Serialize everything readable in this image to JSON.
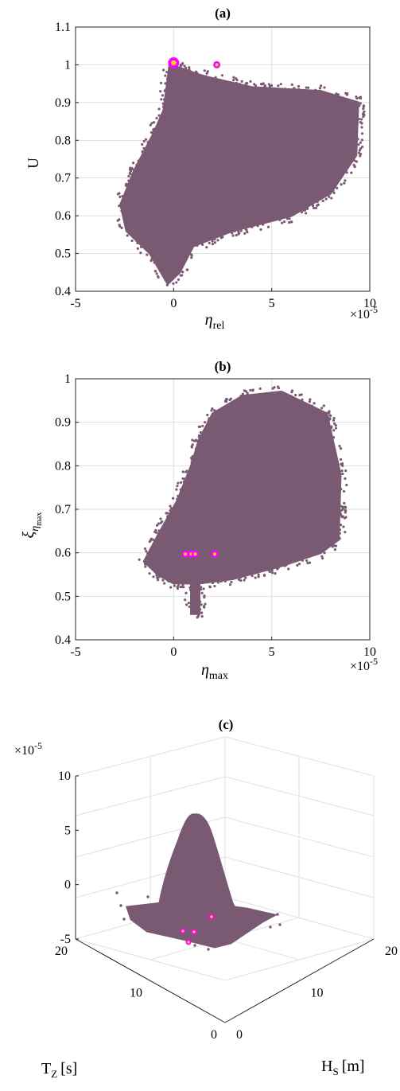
{
  "colors": {
    "cloud": "#7a5a72",
    "highlight_ring": "#ff00ff",
    "highlight_core": "#ffd21e",
    "grid": "#dcdcdc",
    "axis": "#222222"
  },
  "chart_data": [
    {
      "id": "a",
      "type": "scatter",
      "title": "(a)",
      "xlabel": "η",
      "xlabel_sub": "rel",
      "ylabel": "U",
      "x_exponent_label": "×10",
      "x_exponent_power": "-5",
      "xlim": [
        -5,
        10
      ],
      "ylim": [
        0.4,
        1.1
      ],
      "xticks": [
        -5,
        0,
        5,
        10
      ],
      "yticks": [
        0.4,
        0.5,
        0.6,
        0.7,
        0.8,
        0.9,
        1,
        1.1
      ],
      "xtick_labels": [
        "-5",
        "0",
        "5",
        "10"
      ],
      "ytick_labels": [
        "0.4",
        "0.5",
        "0.6",
        "0.7",
        "0.8",
        "0.9",
        "1",
        "1.1"
      ],
      "grid": true,
      "cloud_outline": [
        [
          -0.3,
          0.42
        ],
        [
          0.3,
          0.45
        ],
        [
          1.0,
          0.52
        ],
        [
          3.0,
          0.56
        ],
        [
          6.0,
          0.6
        ],
        [
          8.0,
          0.66
        ],
        [
          9.3,
          0.76
        ],
        [
          9.4,
          0.9
        ],
        [
          7.5,
          0.93
        ],
        [
          4.0,
          0.94
        ],
        [
          1.5,
          0.97
        ],
        [
          0.4,
          0.99
        ],
        [
          -0.2,
          1.0
        ],
        [
          -0.3,
          0.96
        ],
        [
          -0.5,
          0.88
        ],
        [
          -1.0,
          0.82
        ],
        [
          -2.0,
          0.72
        ],
        [
          -2.7,
          0.63
        ],
        [
          -2.4,
          0.56
        ],
        [
          -1.2,
          0.5
        ]
      ],
      "highlights": [
        {
          "x": 0.0,
          "y": 1.005,
          "size": "large"
        },
        {
          "x": 2.2,
          "y": 1.0,
          "size": "small"
        }
      ]
    },
    {
      "id": "b",
      "type": "scatter",
      "title": "(b)",
      "xlabel": "η",
      "xlabel_sub": "max",
      "ylabel": "ξ",
      "ylabel_sub": "η",
      "ylabel_subsub": "max",
      "x_exponent_label": "×10",
      "x_exponent_power": "-5",
      "xlim": [
        -5,
        10
      ],
      "ylim": [
        0.4,
        1
      ],
      "xticks": [
        -5,
        0,
        5,
        10
      ],
      "yticks": [
        0.4,
        0.5,
        0.6,
        0.7,
        0.8,
        0.9,
        1
      ],
      "xtick_labels": [
        "-5",
        "0",
        "5",
        "10"
      ],
      "ytick_labels": [
        "0.4",
        "0.5",
        "0.6",
        "0.7",
        "0.8",
        "0.9",
        "1"
      ],
      "grid": true,
      "cloud_outline": [
        [
          0.9,
          0.46
        ],
        [
          1.3,
          0.46
        ],
        [
          1.3,
          0.53
        ],
        [
          3.0,
          0.54
        ],
        [
          5.5,
          0.57
        ],
        [
          7.5,
          0.6
        ],
        [
          8.4,
          0.63
        ],
        [
          8.5,
          0.78
        ],
        [
          7.8,
          0.92
        ],
        [
          5.5,
          0.97
        ],
        [
          3.5,
          0.96
        ],
        [
          2.0,
          0.92
        ],
        [
          1.3,
          0.86
        ],
        [
          0.9,
          0.8
        ],
        [
          0.2,
          0.72
        ],
        [
          -0.8,
          0.64
        ],
        [
          -1.5,
          0.58
        ],
        [
          -0.8,
          0.55
        ],
        [
          0.0,
          0.53
        ],
        [
          0.9,
          0.53
        ]
      ],
      "highlights": [
        {
          "x": 0.6,
          "y": 0.597,
          "size": "small"
        },
        {
          "x": 0.9,
          "y": 0.597,
          "size": "small"
        },
        {
          "x": 1.1,
          "y": 0.597,
          "size": "small"
        },
        {
          "x": 2.1,
          "y": 0.597,
          "size": "small"
        }
      ]
    },
    {
      "id": "c",
      "type": "scatter",
      "title": "(c)",
      "z_exponent_label": "×10",
      "z_exponent_power": "-5",
      "zticks": [
        -5,
        0,
        5,
        10
      ],
      "ztick_labels": [
        "-5",
        "0",
        "5",
        "10"
      ],
      "zlim": [
        -5,
        10
      ],
      "x_axis_label": "T",
      "x_axis_sub": "Z",
      "x_axis_unit": "[s]",
      "y_axis_label": "H",
      "y_axis_sub": "S",
      "y_axis_unit": "[m]",
      "tz_ticks": [
        0,
        10,
        20
      ],
      "tz_tick_labels": [
        "0",
        "10",
        "20"
      ],
      "hs_ticks": [
        0,
        10,
        20
      ],
      "hs_tick_labels": [
        "0",
        "10",
        "20"
      ],
      "grid": true
    }
  ]
}
